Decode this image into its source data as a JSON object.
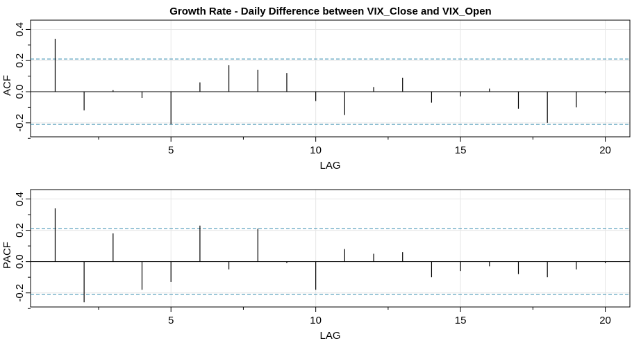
{
  "chart_data": {
    "title": "Growth Rate - Daily Difference between VIX_Close and VIX_Open",
    "panels": [
      {
        "type": "bar",
        "ylabel": "ACF",
        "xlabel": "LAG",
        "xlim": [
          0.15,
          20.85
        ],
        "ylim": [
          -0.29,
          0.46
        ],
        "xticks": [
          5,
          10,
          15,
          20
        ],
        "yticks": [
          -0.2,
          0.0,
          0.2,
          0.4
        ],
        "ytick_labels": [
          "-0.2",
          "0.0",
          "0.2",
          "0.4"
        ],
        "ci": 0.21,
        "lags": [
          1,
          2,
          3,
          4,
          5,
          6,
          7,
          8,
          9,
          10,
          11,
          12,
          13,
          14,
          15,
          16,
          17,
          18,
          19,
          20
        ],
        "values": [
          0.34,
          -0.12,
          0.01,
          -0.04,
          -0.21,
          0.06,
          0.17,
          0.14,
          0.12,
          -0.06,
          -0.15,
          0.03,
          0.09,
          -0.07,
          -0.03,
          0.02,
          -0.11,
          -0.2,
          -0.1,
          -0.01
        ]
      },
      {
        "type": "bar",
        "ylabel": "PACF",
        "xlabel": "LAG",
        "xlim": [
          0.15,
          20.85
        ],
        "ylim": [
          -0.29,
          0.46
        ],
        "xticks": [
          5,
          10,
          15,
          20
        ],
        "yticks": [
          -0.2,
          0.0,
          0.2,
          0.4
        ],
        "ytick_labels": [
          "-0.2",
          "0.0",
          "0.2",
          "0.4"
        ],
        "ci": 0.21,
        "lags": [
          1,
          2,
          3,
          4,
          5,
          6,
          7,
          8,
          9,
          10,
          11,
          12,
          13,
          14,
          15,
          16,
          17,
          18,
          19,
          20
        ],
        "values": [
          0.34,
          -0.26,
          0.18,
          -0.18,
          -0.13,
          0.23,
          -0.05,
          0.21,
          -0.01,
          -0.18,
          0.08,
          0.05,
          0.06,
          -0.1,
          -0.06,
          -0.03,
          -0.08,
          -0.1,
          -0.05,
          -0.01
        ]
      }
    ]
  }
}
